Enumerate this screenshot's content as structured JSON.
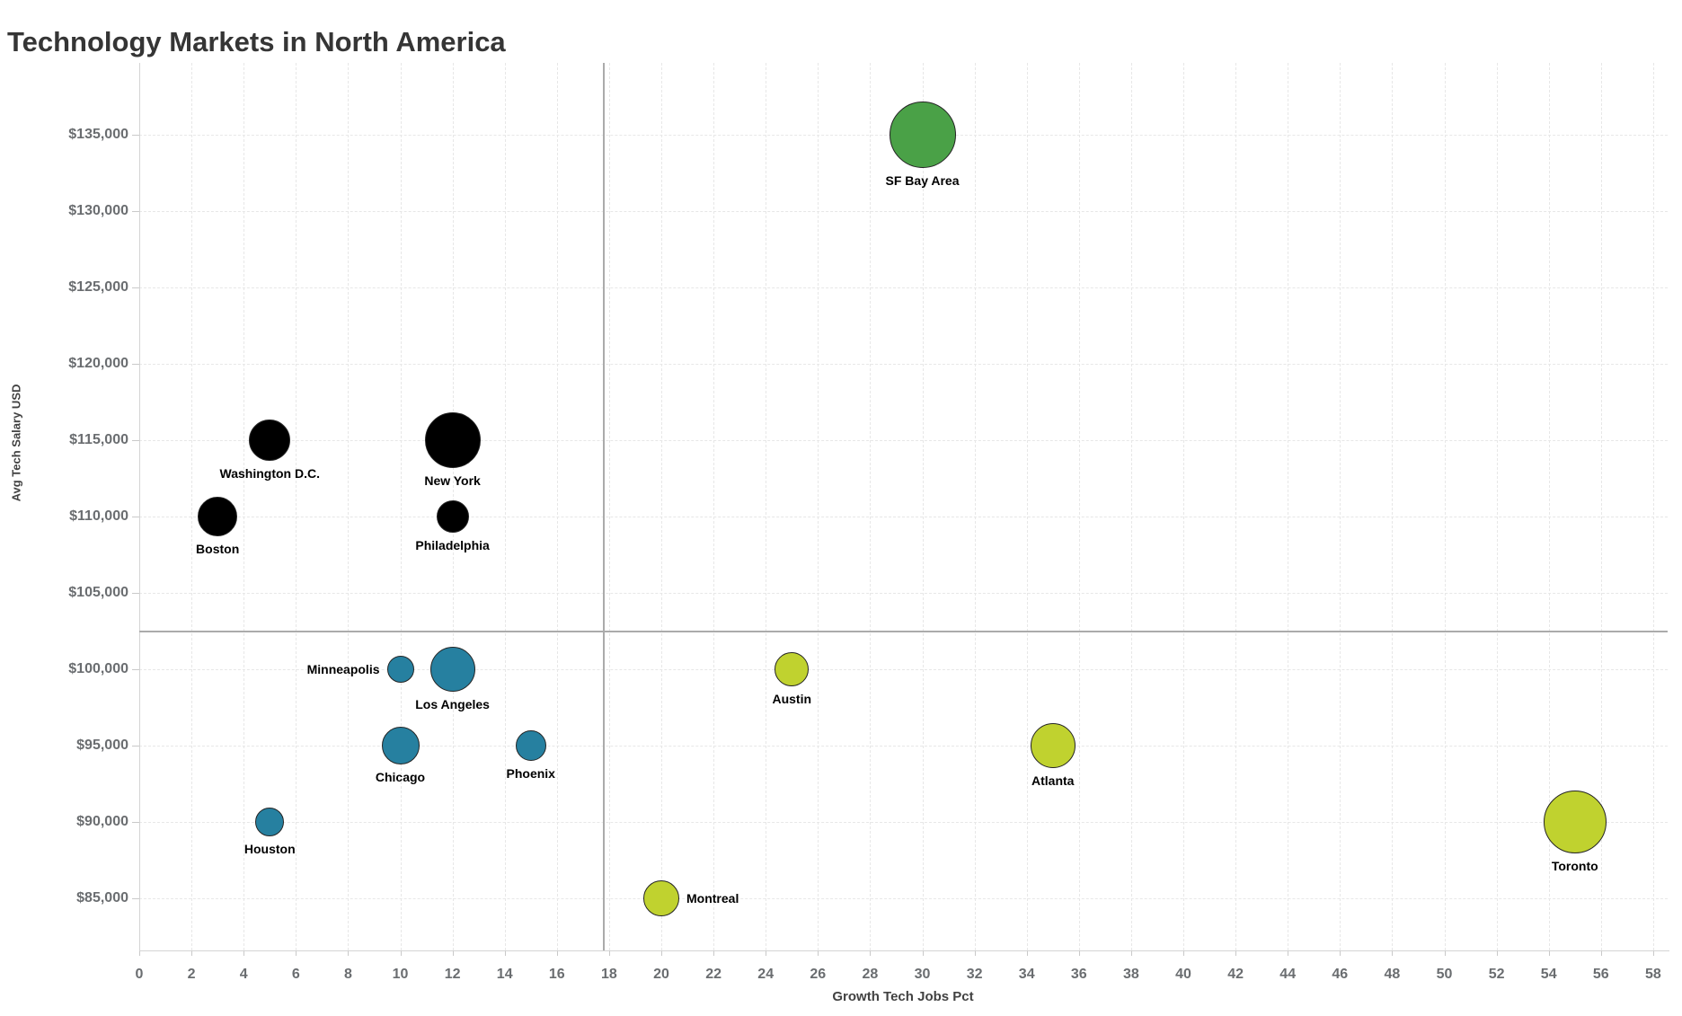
{
  "page": {
    "background": "#ffffff"
  },
  "colors": {
    "black_group": "#000000",
    "blue_group": "#2680a0",
    "green_group": "#4aa147",
    "yellow_green_group": "#c0d22f",
    "reference_line": "#ababab",
    "grid": "#e7e7e7",
    "axis_line": "#d4d4d4",
    "tick_text": "#6a6d70",
    "title_text": "#353535",
    "city_label_text": "#000000"
  },
  "chart_data": {
    "type": "scatter",
    "title": "Technology Markets in North America",
    "xlabel": "Growth Tech Jobs Pct",
    "ylabel": "Avg Tech Salary USD",
    "xlim": [
      0,
      58
    ],
    "ylim": [
      85000,
      135000
    ],
    "grid": true,
    "legend_position": "none",
    "x_ticks": [
      0,
      2,
      4,
      6,
      8,
      10,
      12,
      14,
      16,
      18,
      20,
      22,
      24,
      26,
      28,
      30,
      32,
      34,
      36,
      38,
      40,
      42,
      44,
      46,
      48,
      50,
      52,
      54,
      56,
      58
    ],
    "y_ticks": [
      {
        "value": 85000,
        "label": "$85,000"
      },
      {
        "value": 90000,
        "label": "$90,000"
      },
      {
        "value": 95000,
        "label": "$95,000"
      },
      {
        "value": 100000,
        "label": "$100,000"
      },
      {
        "value": 105000,
        "label": "$105,000"
      },
      {
        "value": 110000,
        "label": "$110,000"
      },
      {
        "value": 115000,
        "label": "$115,000"
      },
      {
        "value": 120000,
        "label": "$120,000"
      },
      {
        "value": 125000,
        "label": "$125,000"
      },
      {
        "value": 130000,
        "label": "$130,000"
      },
      {
        "value": 135000,
        "label": "$135,000"
      }
    ],
    "reference_lines": [
      {
        "orientation": "vertical",
        "value": 17.8
      },
      {
        "orientation": "horizontal",
        "value": 102500
      }
    ],
    "points": [
      {
        "city": "Boston",
        "growth_pct": 3,
        "avg_salary": 110000,
        "radius_px": 22,
        "color": "#000000",
        "label_placement": "below"
      },
      {
        "city": "Washington D.C.",
        "growth_pct": 5,
        "avg_salary": 115000,
        "radius_px": 23,
        "color": "#000000",
        "label_placement": "below"
      },
      {
        "city": "New York",
        "growth_pct": 12,
        "avg_salary": 115000,
        "radius_px": 31,
        "color": "#000000",
        "label_placement": "below"
      },
      {
        "city": "Philadelphia",
        "growth_pct": 12,
        "avg_salary": 110000,
        "radius_px": 18,
        "color": "#000000",
        "label_placement": "below"
      },
      {
        "city": "Houston",
        "growth_pct": 5,
        "avg_salary": 90000,
        "radius_px": 16,
        "color": "#2680a0",
        "label_placement": "below"
      },
      {
        "city": "Minneapolis",
        "growth_pct": 10,
        "avg_salary": 100000,
        "radius_px": 15,
        "color": "#2680a0",
        "label_placement": "left"
      },
      {
        "city": "Los Angeles",
        "growth_pct": 12,
        "avg_salary": 100000,
        "radius_px": 25,
        "color": "#2680a0",
        "label_placement": "below"
      },
      {
        "city": "Chicago",
        "growth_pct": 10,
        "avg_salary": 95000,
        "radius_px": 21,
        "color": "#2680a0",
        "label_placement": "below"
      },
      {
        "city": "Phoenix",
        "growth_pct": 15,
        "avg_salary": 95000,
        "radius_px": 17,
        "color": "#2680a0",
        "label_placement": "below"
      },
      {
        "city": "SF Bay Area",
        "growth_pct": 30,
        "avg_salary": 135000,
        "radius_px": 37,
        "color": "#4aa147",
        "label_placement": "below"
      },
      {
        "city": "Austin",
        "growth_pct": 25,
        "avg_salary": 100000,
        "radius_px": 19,
        "color": "#c0d22f",
        "label_placement": "below"
      },
      {
        "city": "Atlanta",
        "growth_pct": 35,
        "avg_salary": 95000,
        "radius_px": 25,
        "color": "#c0d22f",
        "label_placement": "below"
      },
      {
        "city": "Toronto",
        "growth_pct": 55,
        "avg_salary": 90000,
        "radius_px": 35,
        "color": "#c0d22f",
        "label_placement": "below"
      },
      {
        "city": "Montreal",
        "growth_pct": 20,
        "avg_salary": 85000,
        "radius_px": 20,
        "color": "#c0d22f",
        "label_placement": "right"
      }
    ]
  }
}
